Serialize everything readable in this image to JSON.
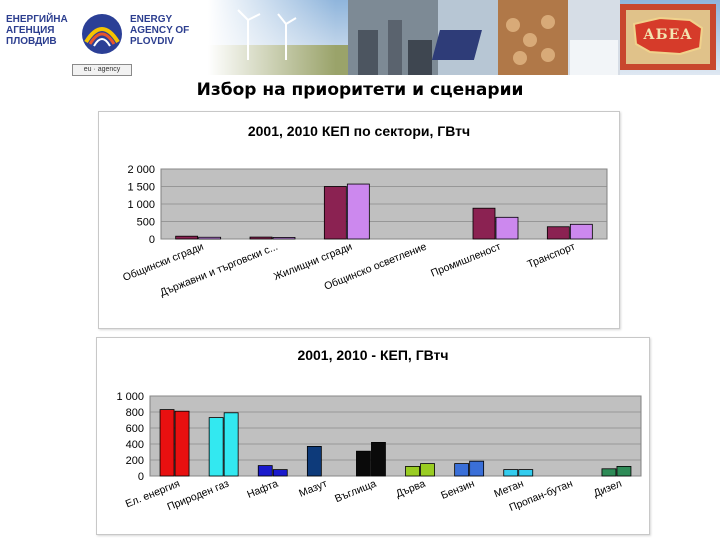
{
  "header": {
    "logo_text_bg": [
      "ЕНЕРГИЙНА",
      "АГЕНЦИЯ",
      "ПЛОВДИВ"
    ],
    "logo_text_en": [
      "ENERGY",
      "AGENCY OF",
      "PLOVDIV"
    ],
    "badge_text": "eu · agency",
    "right_logo_text": "АБЕА"
  },
  "page_title": "Избор на приоритети и сценарии",
  "colors": {
    "series_2001_chart1": "#8b2252",
    "series_2010_chart1": "#cc88ee",
    "plot_bg": "#c0c0c0"
  },
  "chart_data": [
    {
      "type": "bar",
      "title": "2001, 2010 КЕП по сектори, ГВтч",
      "categories": [
        "Общински сгради",
        "Държавни и търговски с...",
        "Жилищни сгради",
        "Общинско осветление",
        "Промишленост",
        "Транспорт"
      ],
      "series": [
        {
          "values": [
            80,
            55,
            1500,
            0,
            880,
            350
          ]
        },
        {
          "values": [
            50,
            45,
            1570,
            0,
            620,
            420
          ]
        }
      ],
      "yticks": [
        "0",
        "500",
        "1 000",
        "1 500",
        "2 000"
      ],
      "ylim": [
        0,
        2000
      ],
      "grid": true
    },
    {
      "type": "bar",
      "title": "2001, 2010 - КЕП, ГВтч",
      "categories": [
        "Ел. енергия",
        "Природен газ",
        "Нафта",
        "Мазут",
        "Въглища",
        "Дърва",
        "Бензин",
        "Метан",
        "Пропан-бутан",
        "Дизел"
      ],
      "series": [
        {
          "values": [
            830,
            730,
            130,
            370,
            310,
            120,
            155,
            80,
            0,
            90
          ]
        },
        {
          "values": [
            810,
            790,
            80,
            0,
            420,
            155,
            185,
            80,
            0,
            120
          ]
        }
      ],
      "colors": [
        [
          "#e81010",
          "#e81010"
        ],
        [
          "#33e8f0",
          "#33e8f0"
        ],
        [
          "#1a1acc",
          "#1a1acc"
        ],
        [
          "#0d3a7a",
          "#0d3a7a"
        ],
        [
          "#0a0a0a",
          "#0a0a0a"
        ],
        [
          "#99cc22",
          "#99cc22"
        ],
        [
          "#3a6fd8",
          "#3a6fd8"
        ],
        [
          "#33ccee",
          "#33ccee"
        ],
        [
          "#888888",
          "#888888"
        ],
        [
          "#2e8b57",
          "#2e8b57"
        ]
      ],
      "yticks": [
        "0",
        "200",
        "400",
        "600",
        "800",
        "1 000"
      ],
      "ylim": [
        0,
        1000
      ],
      "grid": true
    }
  ]
}
